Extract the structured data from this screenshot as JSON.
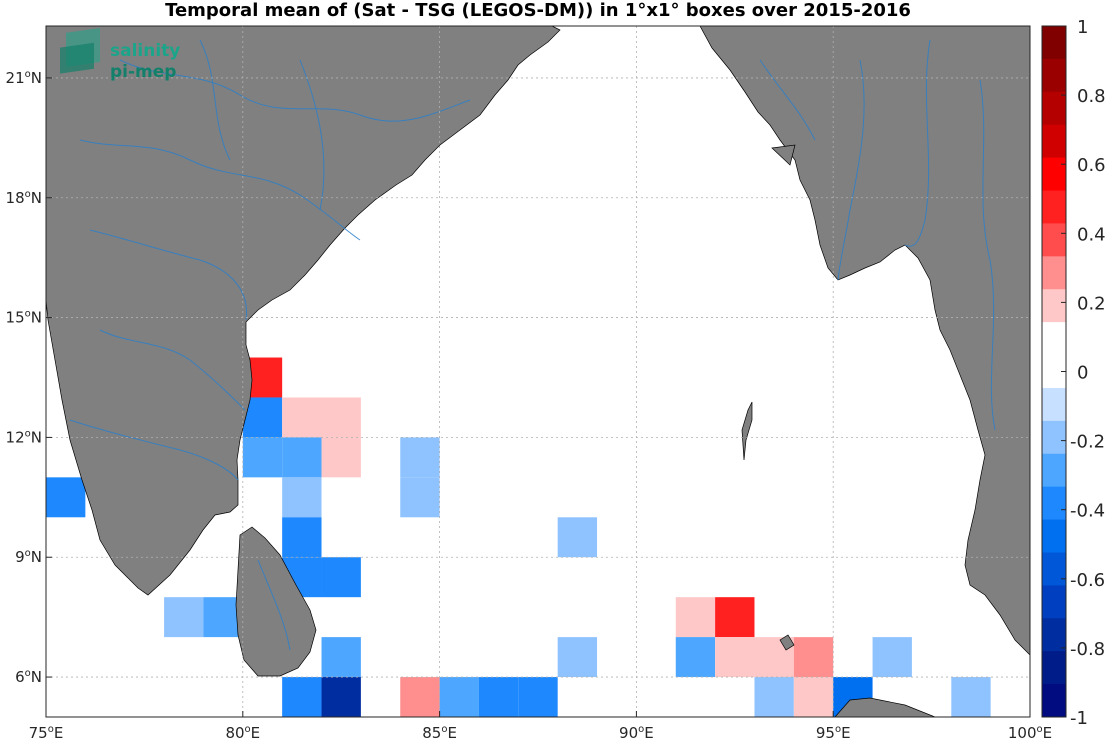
{
  "chart_data": {
    "type": "heatmap",
    "title": "Temporal mean of (Sat - TSG (LEGOS-DM)) in 1°x1° boxes over 2015-2016",
    "logo": [
      "salinity",
      "pi-mep"
    ],
    "x_ticks": [
      {
        "value": 75,
        "label": "75",
        "unit": "E"
      },
      {
        "value": 80,
        "label": "80",
        "unit": "E"
      },
      {
        "value": 85,
        "label": "85",
        "unit": "E"
      },
      {
        "value": 90,
        "label": "90",
        "unit": "E"
      },
      {
        "value": 95,
        "label": "95",
        "unit": "E"
      },
      {
        "value": 100,
        "label": "100",
        "unit": "E"
      }
    ],
    "y_ticks": [
      {
        "value": 6,
        "label": "6",
        "unit": "N"
      },
      {
        "value": 9,
        "label": "9",
        "unit": "N"
      },
      {
        "value": 12,
        "label": "12",
        "unit": "N"
      },
      {
        "value": 15,
        "label": "15",
        "unit": "N"
      },
      {
        "value": 18,
        "label": "18",
        "unit": "N"
      },
      {
        "value": 21,
        "label": "21",
        "unit": "N"
      }
    ],
    "xlim": [
      75,
      100
    ],
    "ylim": [
      5,
      22.3
    ],
    "grid": true,
    "colorbar": {
      "range": [
        -1,
        1
      ],
      "ticks": [
        "1",
        "0.8",
        "0.6",
        "0.4",
        "0.2",
        "0",
        "-0.2",
        "-0.4",
        "-0.6",
        "-0.8",
        "-1"
      ],
      "colors_top_to_bottom": [
        "#800000",
        "#9b0000",
        "#b50000",
        "#d00000",
        "#ff0000",
        "#ff2020",
        "#ff4d4d",
        "#ff8f8f",
        "#ffc8c8",
        "#ffffff",
        "#ffffff",
        "#c8e0ff",
        "#8fc3ff",
        "#4da6ff",
        "#1e88ff",
        "#0070f0",
        "#0058d8",
        "#0040c0",
        "#002ea0",
        "#001c88",
        "#000c80"
      ]
    },
    "cells": [
      {
        "lon": 75,
        "lat": 10,
        "value": -0.4
      },
      {
        "lon": 80,
        "lat": 13,
        "value": 0.45
      },
      {
        "lon": 80,
        "lat": 12,
        "value": -0.4
      },
      {
        "lon": 81,
        "lat": 12,
        "value": 0.15
      },
      {
        "lon": 82,
        "lat": 12,
        "value": 0.15
      },
      {
        "lon": 80,
        "lat": 11,
        "value": -0.3
      },
      {
        "lon": 81,
        "lat": 11,
        "value": -0.25
      },
      {
        "lon": 82,
        "lat": 11,
        "value": 0.15
      },
      {
        "lon": 84,
        "lat": 11,
        "value": -0.15
      },
      {
        "lon": 81,
        "lat": 10,
        "value": -0.15
      },
      {
        "lon": 84,
        "lat": 10,
        "value": -0.15
      },
      {
        "lon": 81,
        "lat": 9,
        "value": -0.4
      },
      {
        "lon": 88,
        "lat": 9,
        "value": -0.15
      },
      {
        "lon": 81,
        "lat": 8,
        "value": -0.35
      },
      {
        "lon": 82,
        "lat": 8,
        "value": -0.35
      },
      {
        "lon": 78,
        "lat": 7,
        "value": -0.15
      },
      {
        "lon": 79,
        "lat": 7,
        "value": -0.3
      },
      {
        "lon": 91,
        "lat": 7,
        "value": 0.15
      },
      {
        "lon": 92,
        "lat": 7,
        "value": 0.45
      },
      {
        "lon": 82,
        "lat": 6,
        "value": -0.25
      },
      {
        "lon": 88,
        "lat": 6,
        "value": -0.15
      },
      {
        "lon": 91,
        "lat": 6,
        "value": -0.25
      },
      {
        "lon": 92,
        "lat": 6,
        "value": 0.15
      },
      {
        "lon": 93,
        "lat": 6,
        "value": 0.15
      },
      {
        "lon": 94,
        "lat": 6,
        "value": 0.3
      },
      {
        "lon": 96,
        "lat": 6,
        "value": -0.15
      },
      {
        "lon": 81,
        "lat": 5,
        "value": -0.4
      },
      {
        "lon": 82,
        "lat": 5,
        "value": -0.75
      },
      {
        "lon": 84,
        "lat": 5,
        "value": 0.3
      },
      {
        "lon": 85,
        "lat": 5,
        "value": -0.3
      },
      {
        "lon": 86,
        "lat": 5,
        "value": -0.4
      },
      {
        "lon": 87,
        "lat": 5,
        "value": -0.35
      },
      {
        "lon": 93,
        "lat": 5,
        "value": -0.15
      },
      {
        "lon": 94,
        "lat": 5,
        "value": 0.15
      },
      {
        "lon": 95,
        "lat": 5,
        "value": -0.45
      },
      {
        "lon": 98,
        "lat": 5,
        "value": -0.15
      }
    ]
  }
}
